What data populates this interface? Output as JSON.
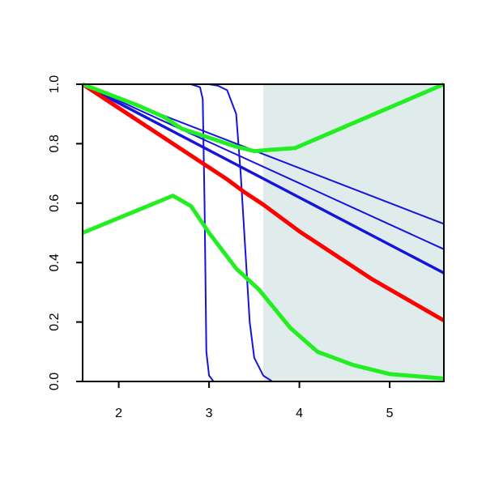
{
  "chart_data": {
    "type": "line",
    "xlim": [
      1.6,
      5.6
    ],
    "ylim": [
      0,
      1
    ],
    "xticks": [
      2,
      3,
      4,
      5
    ],
    "yticks": [
      {
        "value": 0,
        "label": "0.0"
      },
      0.2,
      0.4,
      0.6,
      0.8,
      {
        "value": 1,
        "label": "1.0"
      }
    ],
    "shaded_region": {
      "x": [
        3.6,
        5.6
      ],
      "color": "#e0eceb"
    },
    "series": [
      {
        "color": "#1414dc",
        "linewidth": 2,
        "x": [
          1.6,
          5.6
        ],
        "values": [
          1,
          0.53
        ]
      },
      {
        "color": "#1414dc",
        "linewidth": 2,
        "x": [
          1.6,
          5.6
        ],
        "values": [
          1,
          0.445
        ]
      },
      {
        "color": "#1414dc",
        "linewidth": 3.5,
        "x": [
          1.6,
          5.6
        ],
        "values": [
          1,
          0.365
        ]
      },
      {
        "color": "#1414dc",
        "linewidth": 2,
        "x": [
          1.6,
          2.8,
          2.9,
          2.93,
          2.95,
          2.97,
          3.0,
          3.05,
          5.6
        ],
        "values": [
          1,
          1,
          0.99,
          0.95,
          0.6,
          0.1,
          0.02,
          0,
          0
        ]
      },
      {
        "color": "#1414dc",
        "linewidth": 2,
        "x": [
          1.6,
          3.0,
          3.1,
          3.2,
          3.3,
          3.35,
          3.4,
          3.45,
          3.5,
          3.6,
          3.7,
          5.6
        ],
        "values": [
          1,
          1,
          0.995,
          0.98,
          0.9,
          0.7,
          0.45,
          0.2,
          0.08,
          0.02,
          0,
          0
        ]
      },
      {
        "color": "#ff0000",
        "linewidth": 5,
        "x": [
          1.6,
          2.0,
          2.4,
          2.8,
          3.0,
          3.2,
          3.4,
          3.6,
          3.8,
          4.0,
          4.2,
          4.4,
          4.6,
          4.8,
          5.0,
          5.2,
          5.4,
          5.6
        ],
        "values": [
          1,
          0.92,
          0.84,
          0.76,
          0.72,
          0.68,
          0.635,
          0.595,
          0.55,
          0.505,
          0.465,
          0.425,
          0.385,
          0.345,
          0.31,
          0.275,
          0.24,
          0.205
        ]
      },
      {
        "color": "#22ee22",
        "linewidth": 5,
        "x": [
          1.6,
          2.2,
          2.5,
          2.7,
          3.0,
          3.3,
          3.5,
          3.7,
          3.95,
          5.6
        ],
        "values": [
          1,
          0.93,
          0.89,
          0.85,
          0.82,
          0.79,
          0.775,
          0.78,
          0.785,
          1
        ]
      },
      {
        "color": "#22ee22",
        "linewidth": 5,
        "x": [
          1.6,
          2.6,
          2.8,
          3.0,
          3.3,
          3.55,
          3.9,
          4.2,
          4.6,
          5.0,
          5.6
        ],
        "values": [
          0.5,
          0.625,
          0.59,
          0.5,
          0.38,
          0.31,
          0.18,
          0.1,
          0.055,
          0.025,
          0.01
        ]
      }
    ]
  }
}
